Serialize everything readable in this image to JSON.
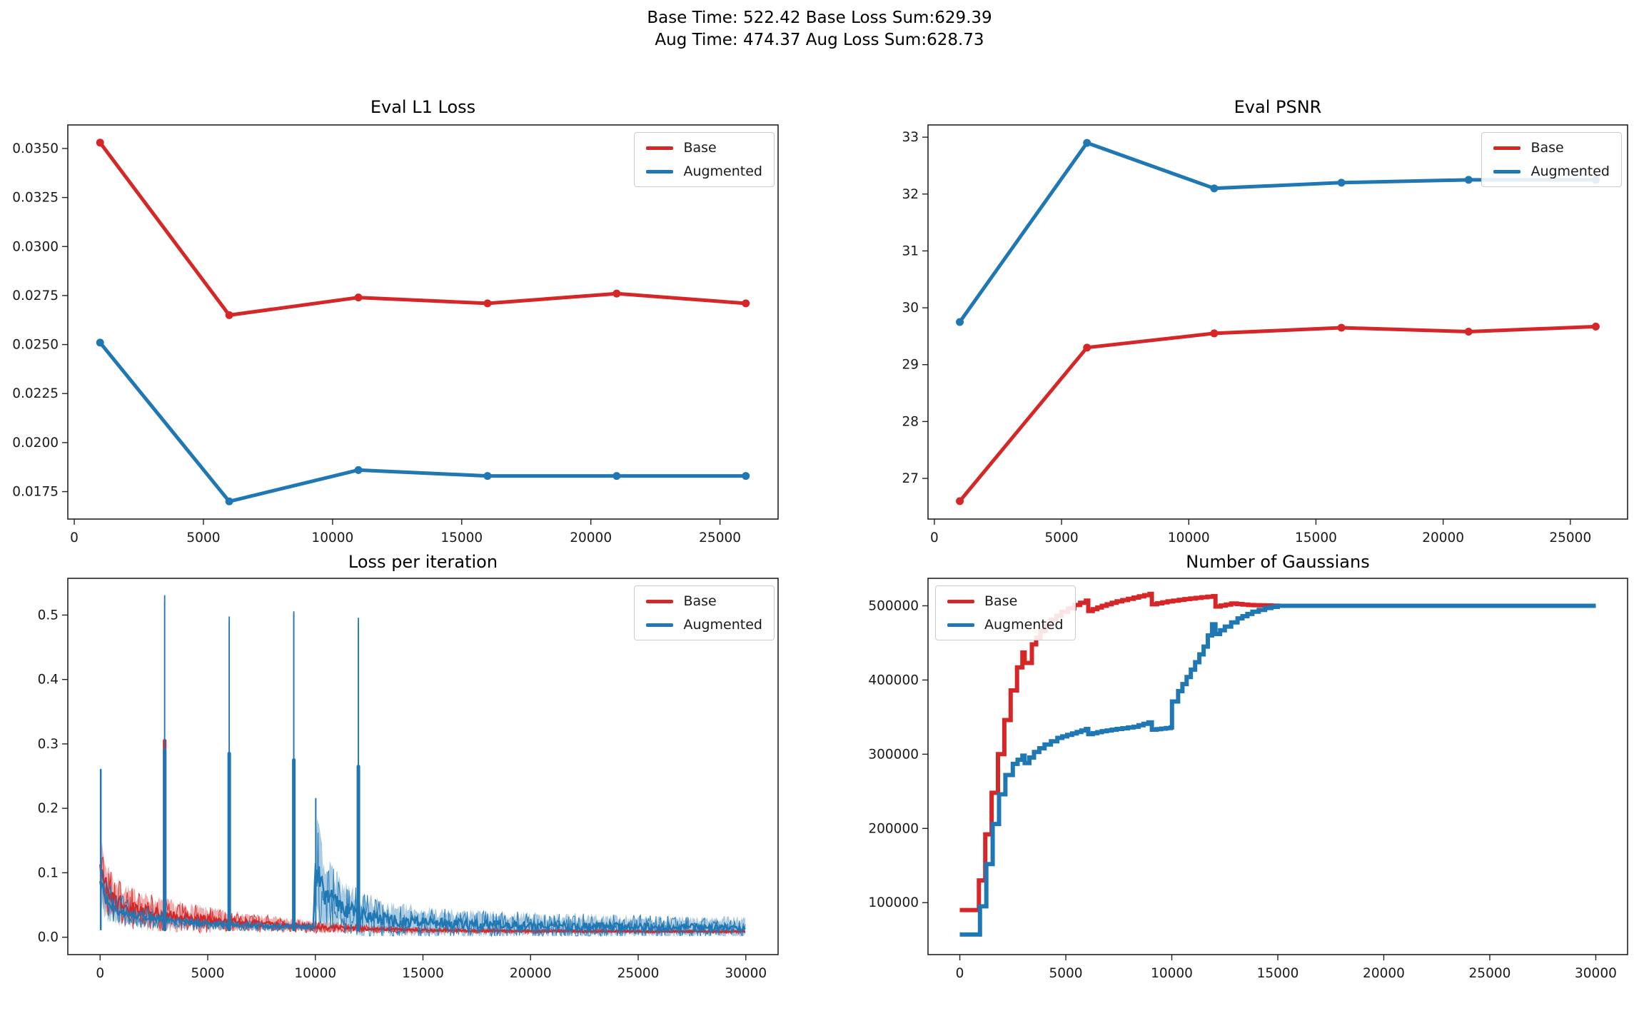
{
  "figure": {
    "suptitle_line1": "Base Time: 522.42 Base Loss Sum:629.39",
    "suptitle_line2": "Aug Time: 474.37 Aug Loss Sum:628.73",
    "background": "#ffffff",
    "colors": {
      "base": "#d62728",
      "augmented": "#1f77b4",
      "base_band": "rgba(214,39,40,0.38)",
      "augmented_band": "rgba(31,119,180,0.38)",
      "spine": "#222222",
      "tick_text": "#1a1a1a"
    }
  },
  "chart_data": [
    {
      "type": "line",
      "title": "Eval L1 Loss",
      "xlabel": "",
      "ylabel": "",
      "x": [
        1000,
        6000,
        11000,
        16000,
        21000,
        26000
      ],
      "series": [
        {
          "name": "Base",
          "color": "#d62728",
          "values": [
            0.0353,
            0.0265,
            0.0274,
            0.0271,
            0.0276,
            0.0271
          ]
        },
        {
          "name": "Augmented",
          "color": "#1f77b4",
          "values": [
            0.0251,
            0.017,
            0.0186,
            0.0183,
            0.0183,
            0.0183
          ]
        }
      ],
      "xlim": [
        -250,
        27250
      ],
      "ylim": [
        0.0161,
        0.0362
      ],
      "xticks": {
        "values": [
          0,
          5000,
          10000,
          15000,
          20000,
          25000
        ],
        "labels": [
          "0",
          "5000",
          "10000",
          "15000",
          "20000",
          "25000"
        ]
      },
      "yticks": {
        "values": [
          0.0175,
          0.02,
          0.0225,
          0.025,
          0.0275,
          0.03,
          0.0325,
          0.035
        ],
        "labels": [
          "0.0175",
          "0.0200",
          "0.0225",
          "0.0250",
          "0.0275",
          "0.0300",
          "0.0325",
          "0.0350"
        ]
      },
      "legend_position": "top-right",
      "grid": false,
      "marker": true
    },
    {
      "type": "line",
      "title": "Eval PSNR",
      "xlabel": "",
      "ylabel": "",
      "x": [
        1000,
        6000,
        11000,
        16000,
        21000,
        26000
      ],
      "series": [
        {
          "name": "Base",
          "color": "#d62728",
          "values": [
            26.6,
            29.3,
            29.55,
            29.65,
            29.58,
            29.67
          ]
        },
        {
          "name": "Augmented",
          "color": "#1f77b4",
          "values": [
            29.75,
            32.9,
            32.1,
            32.2,
            32.25,
            32.25
          ]
        }
      ],
      "xlim": [
        -250,
        27250
      ],
      "ylim": [
        26.285,
        33.215
      ],
      "xticks": {
        "values": [
          0,
          5000,
          10000,
          15000,
          20000,
          25000
        ],
        "labels": [
          "0",
          "5000",
          "10000",
          "15000",
          "20000",
          "25000"
        ]
      },
      "yticks": {
        "values": [
          27,
          28,
          29,
          30,
          31,
          32,
          33
        ],
        "labels": [
          "27",
          "28",
          "29",
          "30",
          "31",
          "32",
          "33"
        ]
      },
      "legend_position": "top-right",
      "grid": false,
      "marker": true
    },
    {
      "type": "noisy-line",
      "title": "Loss per iteration",
      "xlabel": "",
      "ylabel": "",
      "xlim": [
        -1500,
        31500
      ],
      "ylim": [
        -0.027,
        0.557
      ],
      "xticks": {
        "values": [
          0,
          5000,
          10000,
          15000,
          20000,
          25000,
          30000
        ],
        "labels": [
          "0",
          "5000",
          "10000",
          "15000",
          "20000",
          "25000",
          "30000"
        ]
      },
      "yticks": {
        "values": [
          0.0,
          0.1,
          0.2,
          0.3,
          0.4,
          0.5
        ],
        "labels": [
          "0.0",
          "0.1",
          "0.2",
          "0.3",
          "0.4",
          "0.5"
        ]
      },
      "legend_position": "top-right",
      "grid": false,
      "series": [
        {
          "name": "Base",
          "color": "#d62728",
          "band_color": "rgba(214,39,40,0.38)",
          "seed": 7,
          "envelope": [
            [
              0,
              0.105,
              0.055
            ],
            [
              300,
              0.075,
              0.05
            ],
            [
              800,
              0.055,
              0.04
            ],
            [
              1500,
              0.045,
              0.034
            ],
            [
              2500,
              0.037,
              0.029
            ],
            [
              3500,
              0.032,
              0.026
            ],
            [
              5000,
              0.027,
              0.021
            ],
            [
              6500,
              0.023,
              0.017
            ],
            [
              8000,
              0.02,
              0.014
            ],
            [
              10000,
              0.016,
              0.01
            ],
            [
              12000,
              0.0135,
              0.0075
            ],
            [
              15000,
              0.011,
              0.005
            ],
            [
              20000,
              0.0095,
              0.004
            ],
            [
              25000,
              0.009,
              0.0036
            ],
            [
              30000,
              0.0088,
              0.0034
            ]
          ],
          "spikes": [
            [
              3000,
              0.305,
              5
            ],
            [
              3000,
              0.52,
              1.6
            ],
            [
              6000,
              0.49,
              1.6
            ],
            [
              9000,
              0.5,
              1.6
            ],
            [
              12000,
              0.487,
              1.6
            ]
          ]
        },
        {
          "name": "Augmented",
          "color": "#1f77b4",
          "band_color": "rgba(31,119,180,0.38)",
          "seed": 13,
          "envelope": [
            [
              0,
              0.088,
              0.05
            ],
            [
              300,
              0.058,
              0.034
            ],
            [
              800,
              0.044,
              0.027
            ],
            [
              1500,
              0.035,
              0.021
            ],
            [
              2500,
              0.029,
              0.016
            ],
            [
              3500,
              0.025,
              0.013
            ],
            [
              5000,
              0.021,
              0.0105
            ],
            [
              6500,
              0.0185,
              0.009
            ],
            [
              8000,
              0.0165,
              0.008
            ],
            [
              9900,
              0.0155,
              0.007
            ],
            [
              10020,
              0.11,
              0.1
            ],
            [
              10250,
              0.082,
              0.078
            ],
            [
              10700,
              0.06,
              0.058
            ],
            [
              11300,
              0.046,
              0.046
            ],
            [
              12200,
              0.035,
              0.038
            ],
            [
              13000,
              0.029,
              0.033
            ],
            [
              14000,
              0.025,
              0.029
            ],
            [
              15000,
              0.023,
              0.027
            ],
            [
              17000,
              0.02,
              0.024
            ],
            [
              20000,
              0.018,
              0.022
            ],
            [
              23000,
              0.0165,
              0.0205
            ],
            [
              26000,
              0.0155,
              0.019
            ],
            [
              30000,
              0.0148,
              0.018
            ]
          ],
          "spikes": [
            [
              30,
              0.26,
              2.5
            ],
            [
              3000,
              0.29,
              5
            ],
            [
              3000,
              0.53,
              1.8
            ],
            [
              6000,
              0.285,
              5
            ],
            [
              6000,
              0.497,
              1.8
            ],
            [
              9000,
              0.275,
              5
            ],
            [
              9000,
              0.505,
              1.8
            ],
            [
              10020,
              0.215,
              2
            ],
            [
              12000,
              0.265,
              5
            ],
            [
              12000,
              0.495,
              1.8
            ]
          ]
        }
      ]
    },
    {
      "type": "step-line",
      "title": "Number of Gaussians",
      "xlabel": "",
      "ylabel": "",
      "xlim": [
        -1500,
        31500
      ],
      "ylim": [
        30000,
        537000
      ],
      "xticks": {
        "values": [
          0,
          5000,
          10000,
          15000,
          20000,
          25000,
          30000
        ],
        "labels": [
          "0",
          "5000",
          "10000",
          "15000",
          "20000",
          "25000",
          "30000"
        ]
      },
      "yticks": {
        "values": [
          100000,
          200000,
          300000,
          400000,
          500000
        ],
        "labels": [
          "100000",
          "200000",
          "300000",
          "400000",
          "500000"
        ]
      },
      "legend_position": "top-left",
      "grid": false,
      "series": [
        {
          "name": "Base",
          "color": "#d62728",
          "points": [
            [
              0,
              90000
            ],
            [
              650,
              90000
            ],
            [
              900,
              130000
            ],
            [
              1200,
              192000
            ],
            [
              1500,
              248000
            ],
            [
              1800,
              300000
            ],
            [
              2100,
              346000
            ],
            [
              2400,
              386000
            ],
            [
              2700,
              417000
            ],
            [
              2950,
              437000
            ],
            [
              3060,
              423000
            ],
            [
              3400,
              448000
            ],
            [
              3800,
              466000
            ],
            [
              4300,
              481000
            ],
            [
              4800,
              492000
            ],
            [
              5400,
              501000
            ],
            [
              5950,
              507000
            ],
            [
              6060,
              493000
            ],
            [
              6700,
              500000
            ],
            [
              7400,
              506000
            ],
            [
              8200,
              511000
            ],
            [
              8950,
              516000
            ],
            [
              9060,
              502000
            ],
            [
              9800,
              506000
            ],
            [
              10600,
              509000
            ],
            [
              11400,
              511500
            ],
            [
              11950,
              513000
            ],
            [
              12060,
              499000
            ],
            [
              12800,
              503000
            ],
            [
              13600,
              501000
            ],
            [
              14400,
              500400
            ],
            [
              15000,
              500000
            ],
            [
              30000,
              500000
            ]
          ]
        },
        {
          "name": "Augmented",
          "color": "#1f77b4",
          "points": [
            [
              0,
              57000
            ],
            [
              700,
              57000
            ],
            [
              950,
              95000
            ],
            [
              1250,
              152000
            ],
            [
              1550,
              206000
            ],
            [
              1850,
              246000
            ],
            [
              2150,
              272000
            ],
            [
              2500,
              287000
            ],
            [
              2950,
              298000
            ],
            [
              3060,
              288000
            ],
            [
              3500,
              303000
            ],
            [
              4000,
              313000
            ],
            [
              4600,
              322000
            ],
            [
              5300,
              328000
            ],
            [
              5950,
              334000
            ],
            [
              6060,
              327000
            ],
            [
              6700,
              331000
            ],
            [
              7400,
              334000
            ],
            [
              8200,
              337000
            ],
            [
              8900,
              343000
            ],
            [
              9060,
              333000
            ],
            [
              9950,
              336000
            ],
            [
              10010,
              371000
            ],
            [
              10300,
              385000
            ],
            [
              10700,
              404000
            ],
            [
              11100,
              424000
            ],
            [
              11500,
              445000
            ],
            [
              11900,
              475000
            ],
            [
              12060,
              462000
            ],
            [
              12500,
              472000
            ],
            [
              13100,
              483000
            ],
            [
              13800,
              492000
            ],
            [
              14400,
              497000
            ],
            [
              15000,
              500000
            ],
            [
              30000,
              500000
            ]
          ]
        }
      ]
    }
  ]
}
